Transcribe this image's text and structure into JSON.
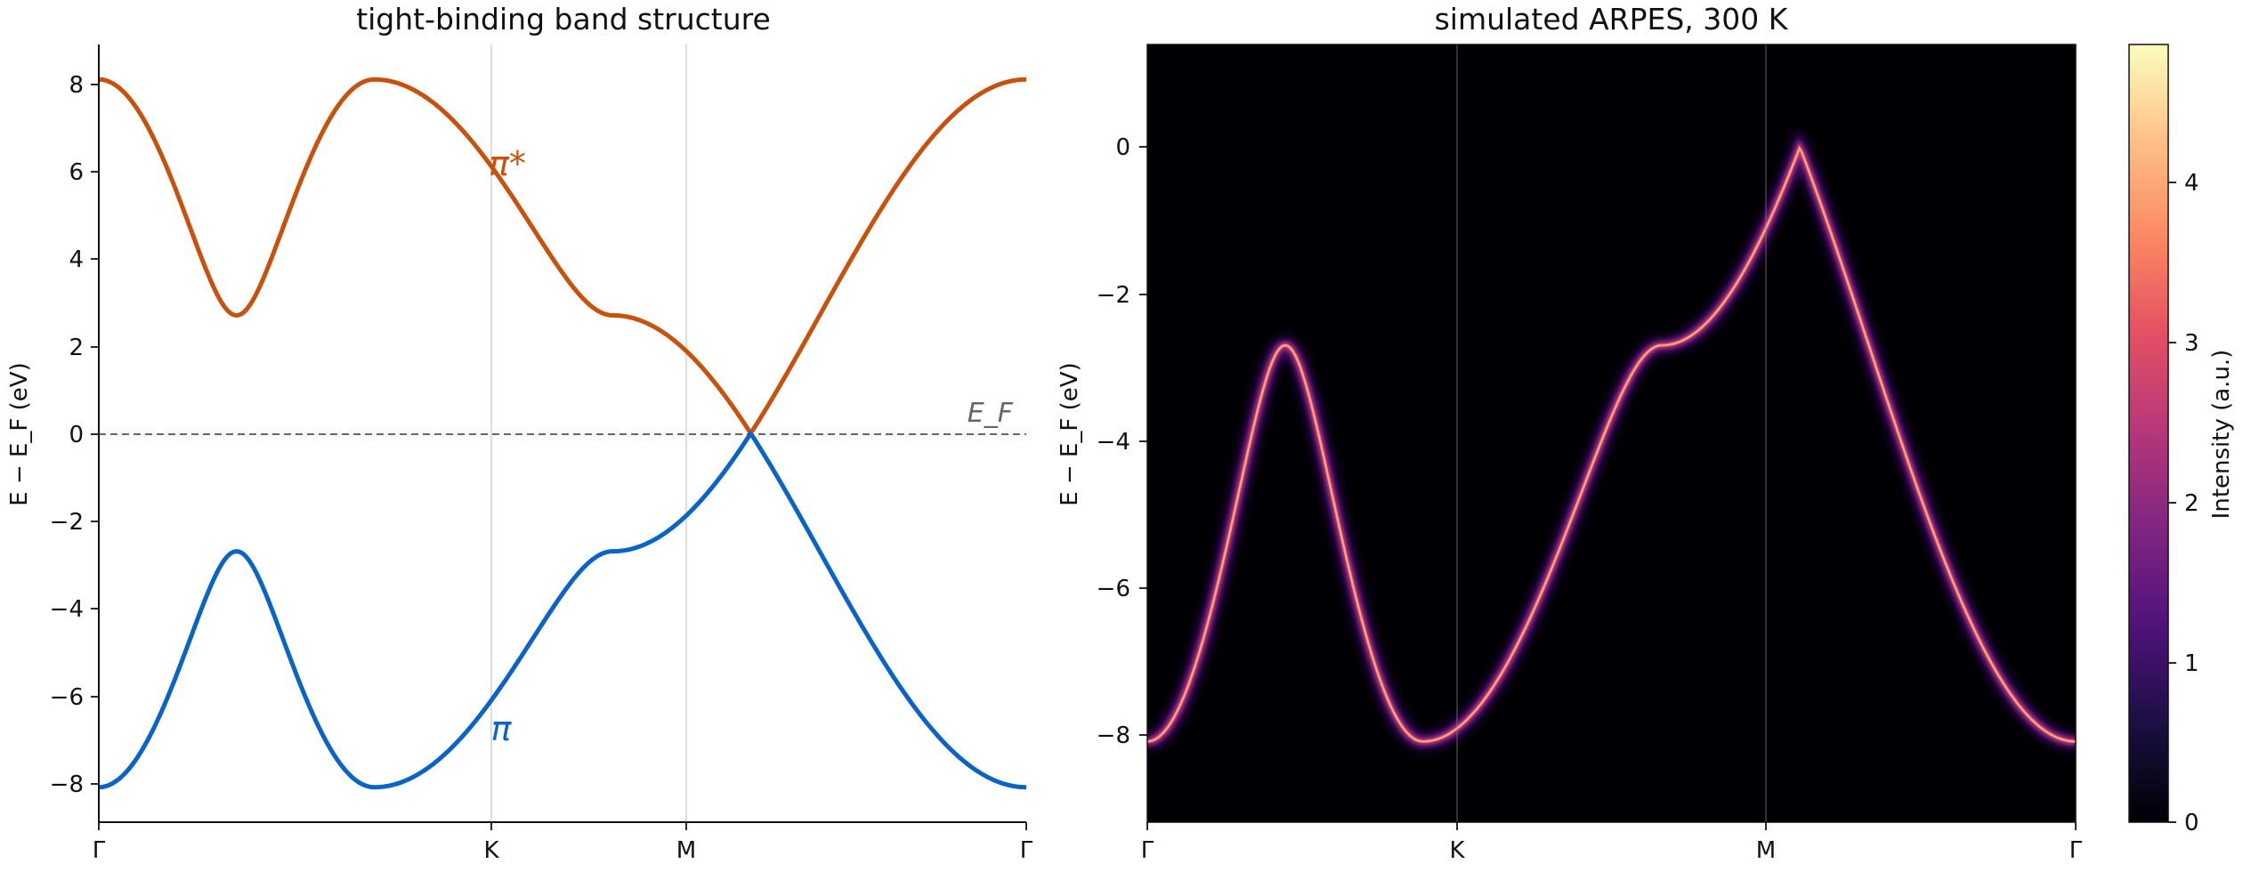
{
  "chart_data": [
    {
      "type": "line",
      "title": "tight-binding band structure",
      "xlabel": "",
      "ylabel": "E − E_F (eV)",
      "ylim": [
        -8.9,
        8.9
      ],
      "x_ticks": [
        "Γ",
        "K",
        "M",
        "Γ"
      ],
      "y_ticks": [
        "8",
        "6",
        "4",
        "2",
        "0",
        "−2",
        "−4",
        "−6",
        "−8"
      ],
      "series": [
        {
          "name": "π*",
          "color": "#c8510b",
          "x": [
            "Γ",
            "K",
            "M",
            "Γ"
          ],
          "y": [
            8.1,
            0.0,
            2.7,
            8.1
          ]
        },
        {
          "name": "π",
          "color": "#0a64c8",
          "x": [
            "Γ",
            "K",
            "M",
            "Γ"
          ],
          "y": [
            -8.1,
            0.0,
            -2.7,
            -8.1
          ]
        }
      ],
      "annotations": [
        {
          "text": "π*",
          "color": "#c8510b"
        },
        {
          "text": "π",
          "color": "#0a64c8"
        },
        {
          "text": "E_F",
          "color": "#666666"
        }
      ],
      "reference_line": {
        "y": 0,
        "style": "dashed",
        "color": "#666666"
      },
      "grid": false,
      "vertical_lines": [
        "K",
        "M"
      ]
    },
    {
      "type": "heatmap",
      "title": "simulated ARPES, 300 K",
      "xlabel": "",
      "ylabel": "E − E_F (eV)",
      "ylim": [
        -9.2,
        1.4
      ],
      "x_ticks": [
        "Γ",
        "K",
        "M",
        "Γ"
      ],
      "y_ticks": [
        "0",
        "−2",
        "−4",
        "−6",
        "−8"
      ],
      "band_trace": {
        "x": [
          "Γ",
          "K",
          "M",
          "Γ"
        ],
        "y": [
          -8.1,
          0.0,
          -2.7,
          -8.1
        ]
      },
      "colormap": "magma",
      "colorbar": {
        "label": "Intensity (a.u.)",
        "range": [
          0,
          4.85
        ],
        "ticks": [
          "0",
          "1",
          "2",
          "3",
          "4"
        ]
      },
      "vertical_lines": [
        "K",
        "M"
      ]
    }
  ]
}
